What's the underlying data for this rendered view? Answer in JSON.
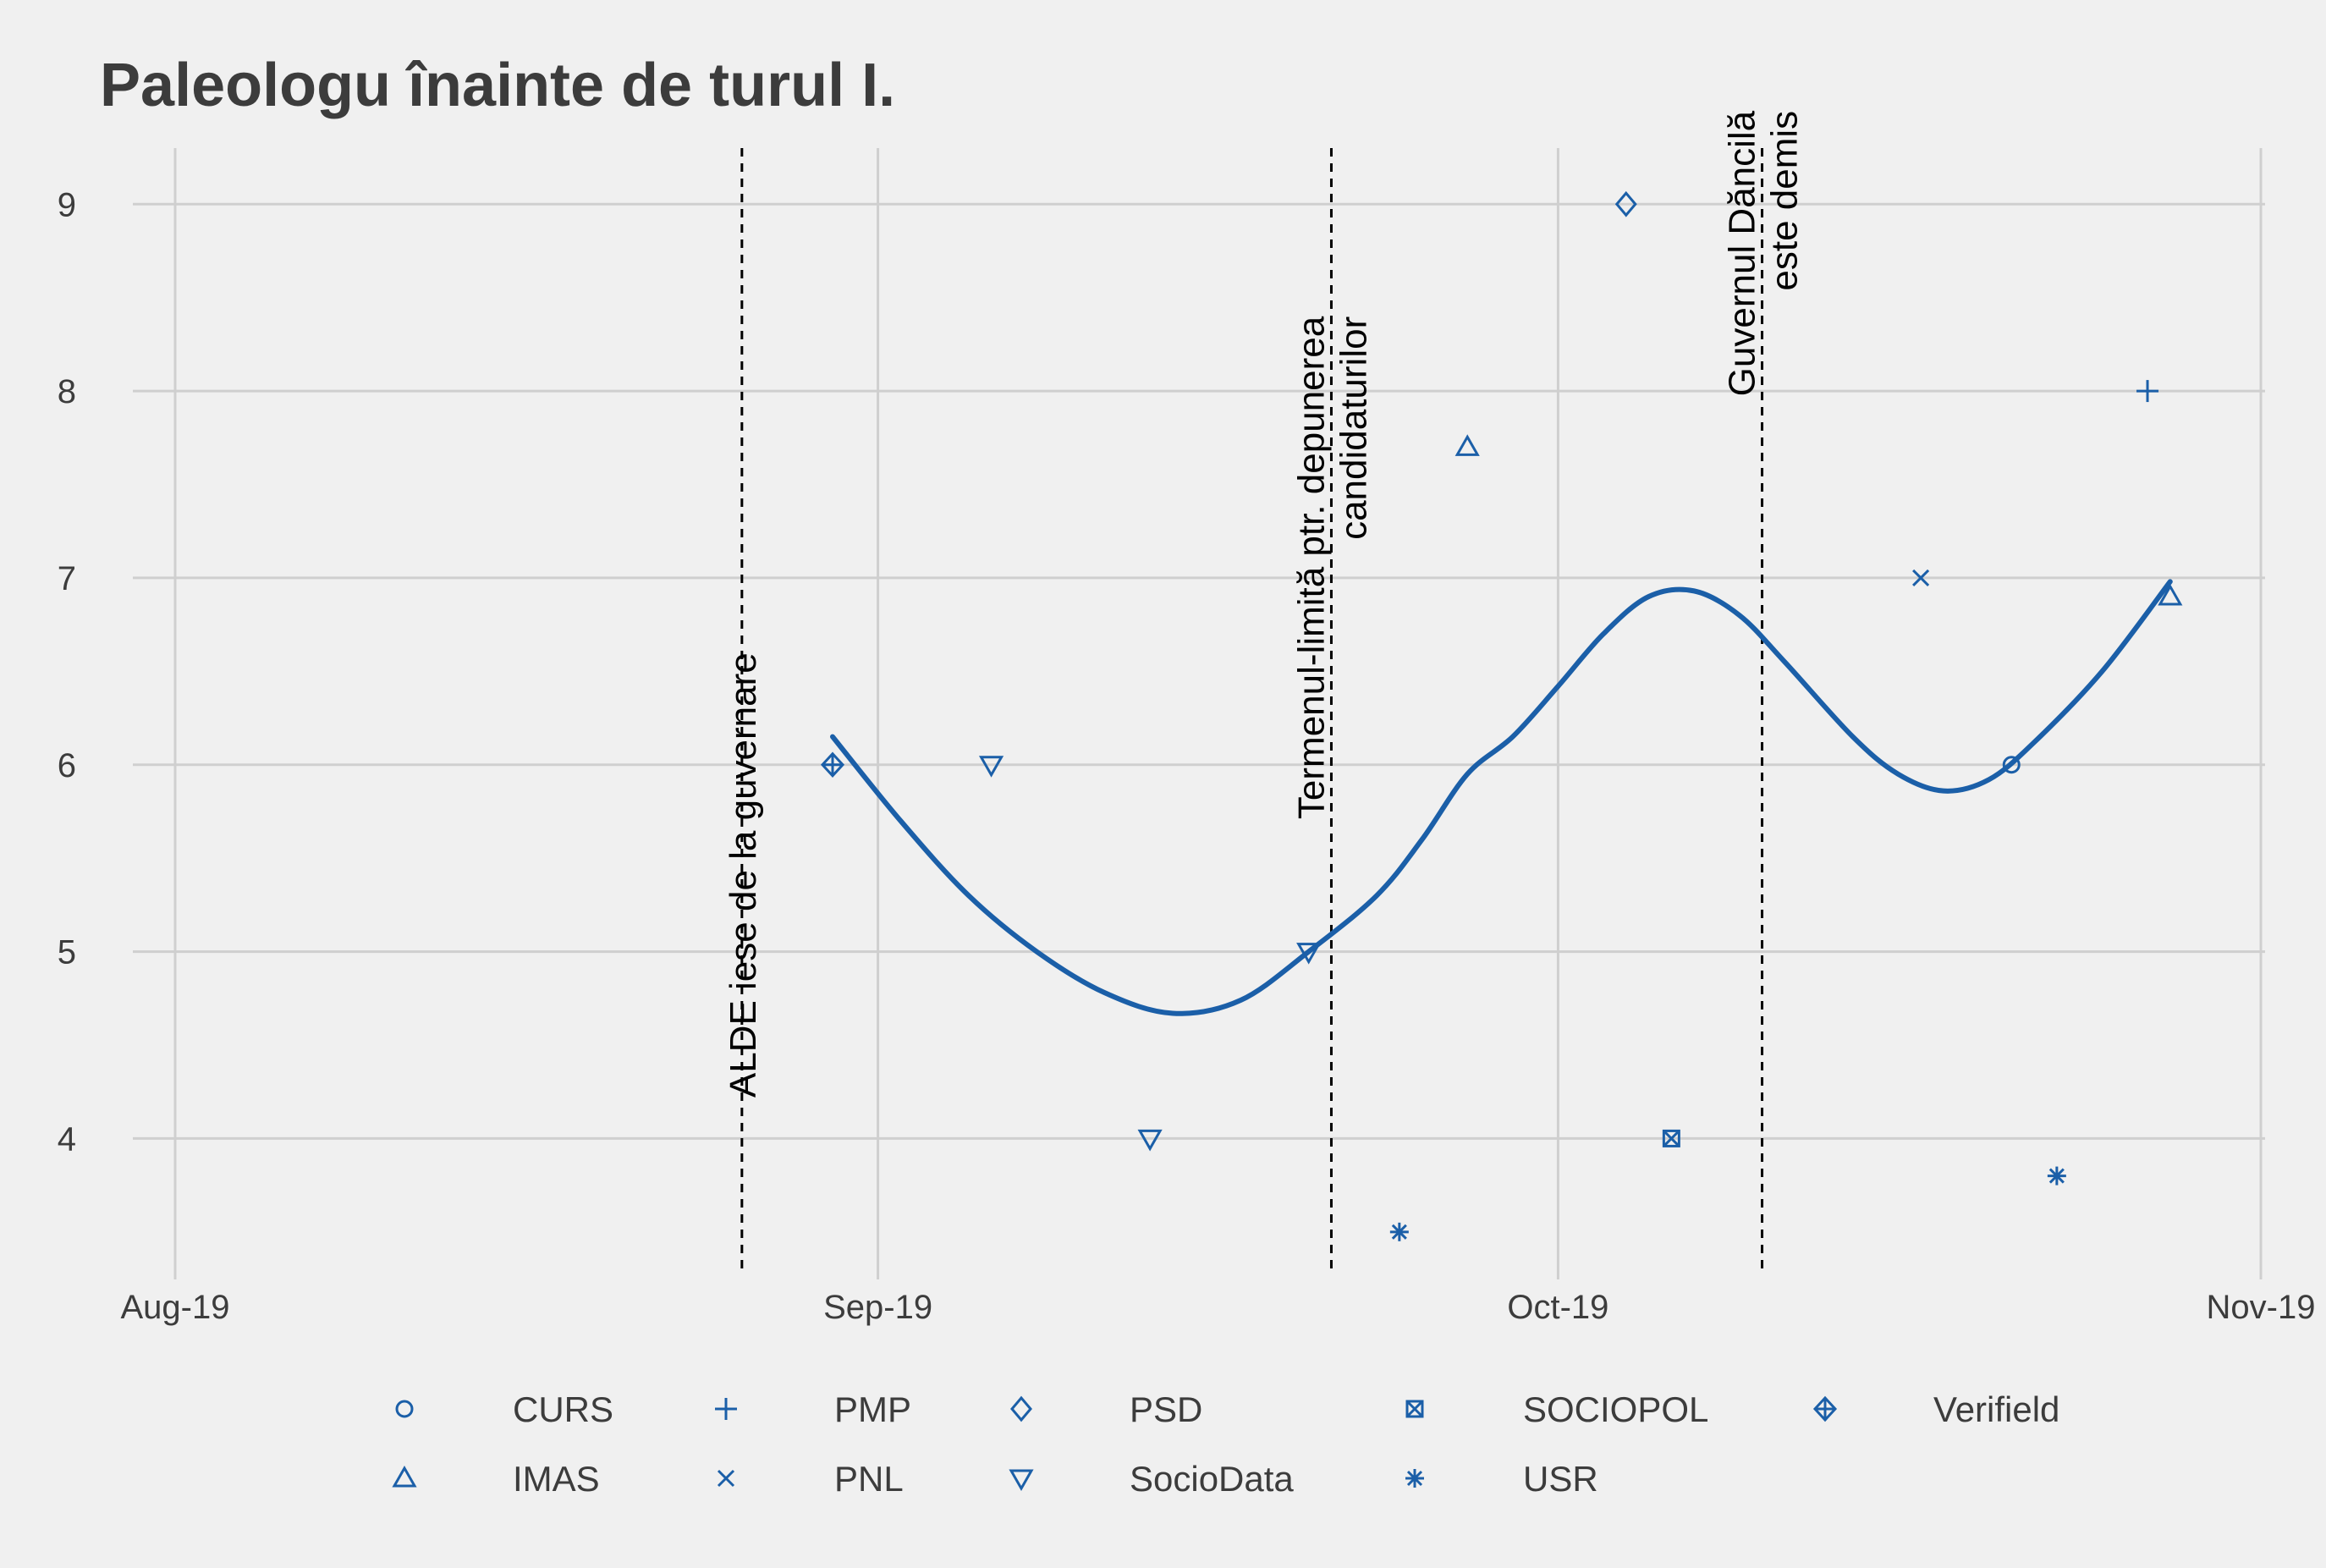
{
  "chart_data": {
    "type": "scatter",
    "title": "Paleologu înainte de turul I.",
    "xlabel": "",
    "ylabel": "",
    "x_range": [
      "2019-08-01",
      "2019-11-01"
    ],
    "ylim": [
      3.3,
      9.3
    ],
    "x_ticks": [
      {
        "date": "2019-08-01",
        "label": "Aug-19"
      },
      {
        "date": "2019-09-01",
        "label": "Sep-19"
      },
      {
        "date": "2019-10-01",
        "label": "Oct-19"
      },
      {
        "date": "2019-11-01",
        "label": "Nov-19"
      }
    ],
    "y_ticks": [
      4,
      5,
      6,
      7,
      8,
      9
    ],
    "grid": true,
    "legend_position": "bottom",
    "color": "#1b5fa8",
    "series": [
      {
        "name": "CURS",
        "shape": "circle",
        "points": [
          {
            "x": "2019-10-21",
            "y": 6.0
          }
        ]
      },
      {
        "name": "IMAS",
        "shape": "triangle-up",
        "points": [
          {
            "x": "2019-09-27",
            "y": 7.7
          },
          {
            "x": "2019-10-28",
            "y": 6.9
          }
        ]
      },
      {
        "name": "PMP",
        "shape": "plus",
        "points": [
          {
            "x": "2019-10-27",
            "y": 8.0
          }
        ]
      },
      {
        "name": "PNL",
        "shape": "cross",
        "points": [
          {
            "x": "2019-10-17",
            "y": 7.0
          }
        ]
      },
      {
        "name": "PSD",
        "shape": "diamond",
        "points": [
          {
            "x": "2019-10-04",
            "y": 9.0
          }
        ]
      },
      {
        "name": "SocioData",
        "shape": "triangle-down",
        "points": [
          {
            "x": "2019-09-06",
            "y": 6.0
          },
          {
            "x": "2019-09-13",
            "y": 4.0
          },
          {
            "x": "2019-09-20",
            "y": 5.0
          }
        ]
      },
      {
        "name": "SOCIOPOL",
        "shape": "square-x",
        "points": [
          {
            "x": "2019-10-06",
            "y": 4.0
          }
        ]
      },
      {
        "name": "USR",
        "shape": "asterisk",
        "points": [
          {
            "x": "2019-09-24",
            "y": 3.5
          },
          {
            "x": "2019-10-23",
            "y": 3.8
          }
        ]
      },
      {
        "name": "Verifield",
        "shape": "diamond-plus",
        "points": [
          {
            "x": "2019-08-30",
            "y": 6.0
          }
        ]
      }
    ],
    "smooth_line": [
      {
        "x": "2019-08-30",
        "y": 6.15
      },
      {
        "x": "2019-09-02",
        "y": 5.7
      },
      {
        "x": "2019-09-05",
        "y": 5.3
      },
      {
        "x": "2019-09-08",
        "y": 5.0
      },
      {
        "x": "2019-09-11",
        "y": 4.78
      },
      {
        "x": "2019-09-14",
        "y": 4.67
      },
      {
        "x": "2019-09-17",
        "y": 4.74
      },
      {
        "x": "2019-09-20",
        "y": 5.0
      },
      {
        "x": "2019-09-23",
        "y": 5.3
      },
      {
        "x": "2019-09-25",
        "y": 5.6
      },
      {
        "x": "2019-09-27",
        "y": 5.95
      },
      {
        "x": "2019-09-29",
        "y": 6.15
      },
      {
        "x": "2019-10-01",
        "y": 6.42
      },
      {
        "x": "2019-10-03",
        "y": 6.7
      },
      {
        "x": "2019-10-05",
        "y": 6.9
      },
      {
        "x": "2019-10-07",
        "y": 6.93
      },
      {
        "x": "2019-10-09",
        "y": 6.8
      },
      {
        "x": "2019-10-11",
        "y": 6.55
      },
      {
        "x": "2019-10-14",
        "y": 6.15
      },
      {
        "x": "2019-10-16",
        "y": 5.95
      },
      {
        "x": "2019-10-18",
        "y": 5.86
      },
      {
        "x": "2019-10-20",
        "y": 5.92
      },
      {
        "x": "2019-10-22",
        "y": 6.12
      },
      {
        "x": "2019-10-25",
        "y": 6.5
      },
      {
        "x": "2019-10-28",
        "y": 6.98
      }
    ],
    "annotations": [
      {
        "date": "2019-08-26",
        "lines": [
          "ALDE iese de la guvernare"
        ],
        "y_top": 6.6
      },
      {
        "date": "2019-09-21",
        "lines": [
          "Termenul-limită ptr. depunerea",
          "candidaturilor"
        ],
        "y_top": 8.4
      },
      {
        "date": "2019-10-10",
        "lines": [
          "Guvernul Dăncilă",
          "este demis"
        ],
        "y_top": 9.5
      }
    ]
  }
}
